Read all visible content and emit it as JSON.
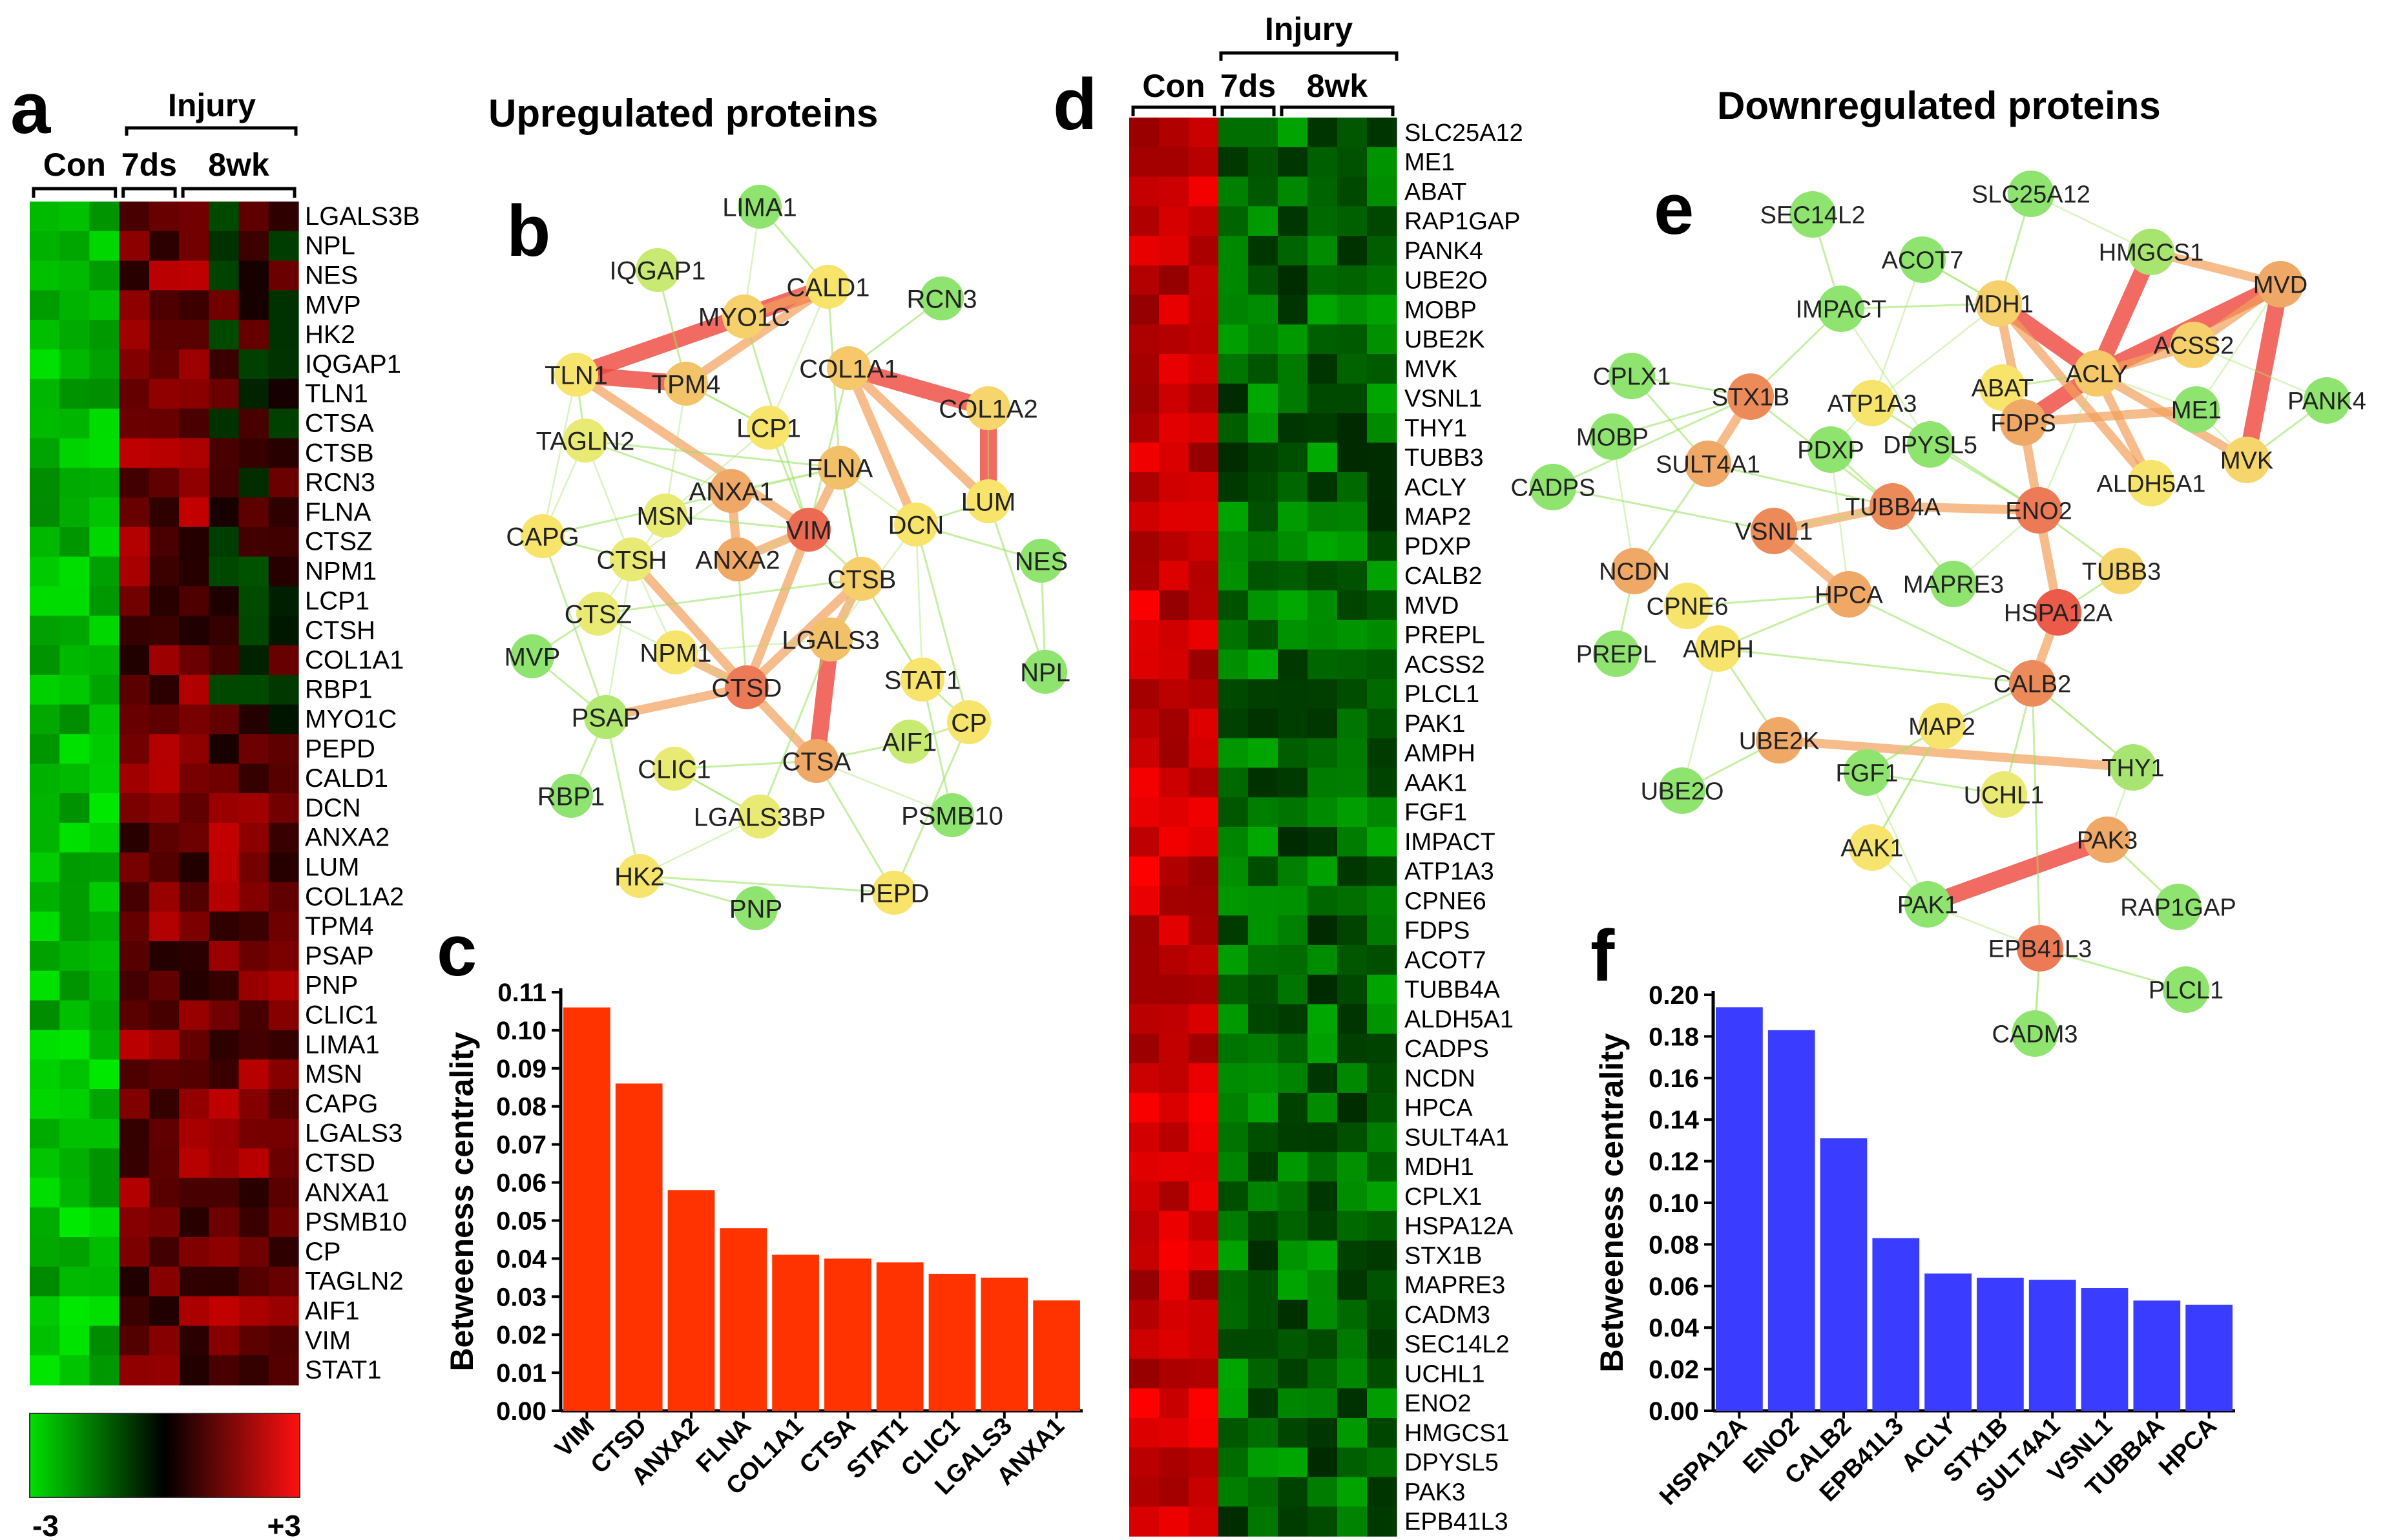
{
  "panels": {
    "a": {
      "letter": "a",
      "injury_label": "Injury",
      "groups": [
        "Con",
        "7ds",
        "8wk"
      ],
      "genes": [
        "LGALS3B",
        "NPL",
        "NES",
        "MVP",
        "HK2",
        "IQGAP1",
        "TLN1",
        "CTSA",
        "CTSB",
        "RCN3",
        "FLNA",
        "CTSZ",
        "NPM1",
        "LCP1",
        "CTSH",
        "COL1A1",
        "RBP1",
        "MYO1C",
        "PEPD",
        "CALD1",
        "DCN",
        "ANXA2",
        "LUM",
        "COL1A2",
        "TPM4",
        "PSAP",
        "PNP",
        "CLIC1",
        "LIMA1",
        "MSN",
        "CAPG",
        "LGALS3",
        "CTSD",
        "ANXA1",
        "PSMB10",
        "CP",
        "TAGLN2",
        "AIF1",
        "VIM",
        "STAT1"
      ],
      "legend": {
        "min_label": "-3",
        "max_label": "+3"
      }
    },
    "b": {
      "letter": "b",
      "title": "Upregulated proteins",
      "nodes": [
        {
          "label": "LIMA1",
          "color": "#8fe36f"
        },
        {
          "label": "IQGAP1",
          "color": "#c8ea72"
        },
        {
          "label": "CALD1",
          "color": "#f8e46a"
        },
        {
          "label": "RCN3",
          "color": "#8fe36f"
        },
        {
          "label": "MYO1C",
          "color": "#f6d06a"
        },
        {
          "label": "TLN1",
          "color": "#f6e46c"
        },
        {
          "label": "TPM4",
          "color": "#f3c36a"
        },
        {
          "label": "COL1A1",
          "color": "#f6c86a"
        },
        {
          "label": "COL1A2",
          "color": "#f6d66c"
        },
        {
          "label": "TAGLN2",
          "color": "#e8ea74"
        },
        {
          "label": "LCP1",
          "color": "#f8e46a"
        },
        {
          "label": "FLNA",
          "color": "#f3c06a"
        },
        {
          "label": "LUM",
          "color": "#f8e46a"
        },
        {
          "label": "ANXA1",
          "color": "#f0a866"
        },
        {
          "label": "MSN",
          "color": "#e8ea74"
        },
        {
          "label": "CAPG",
          "color": "#f8e46a"
        },
        {
          "label": "VIM",
          "color": "#ec6a52"
        },
        {
          "label": "DCN",
          "color": "#f8e46a"
        },
        {
          "label": "NES",
          "color": "#8fe36f"
        },
        {
          "label": "CTSH",
          "color": "#e8ea74"
        },
        {
          "label": "ANXA2",
          "color": "#f0a866"
        },
        {
          "label": "CTSB",
          "color": "#f6cf6a"
        },
        {
          "label": "CTSZ",
          "color": "#e8ea74"
        },
        {
          "label": "LGALS3",
          "color": "#f3c06a"
        },
        {
          "label": "MVP",
          "color": "#8fe36f"
        },
        {
          "label": "NPM1",
          "color": "#f6e46c"
        },
        {
          "label": "CTSD",
          "color": "#ec7a56"
        },
        {
          "label": "STAT1",
          "color": "#f8e46a"
        },
        {
          "label": "NPL",
          "color": "#8fe36f"
        },
        {
          "label": "PSAP",
          "color": "#b0e872"
        },
        {
          "label": "CP",
          "color": "#f6e46c"
        },
        {
          "label": "AIF1",
          "color": "#c8ea72"
        },
        {
          "label": "CTSA",
          "color": "#f0a866"
        },
        {
          "label": "CLIC1",
          "color": "#e8ea74"
        },
        {
          "label": "RBP1",
          "color": "#8fe36f"
        },
        {
          "label": "LGALS3BP",
          "color": "#e8ea74"
        },
        {
          "label": "PSMB10",
          "color": "#8fe36f"
        },
        {
          "label": "HK2",
          "color": "#f6e46c"
        },
        {
          "label": "PNP",
          "color": "#8fe36f"
        },
        {
          "label": "PEPD",
          "color": "#f8e46a"
        }
      ]
    },
    "c": {
      "letter": "c"
    },
    "d": {
      "letter": "d",
      "injury_label": "Injury",
      "groups": [
        "Con",
        "7ds",
        "8wk"
      ],
      "genes": [
        "SLC25A12",
        "ME1",
        "ABAT",
        "RAP1GAP",
        "PANK4",
        "UBE2O",
        "MOBP",
        "UBE2K",
        "MVK",
        "VSNL1",
        "THY1",
        "TUBB3",
        "ACLY",
        "MAP2",
        "PDXP",
        "CALB2",
        "MVD",
        "PREPL",
        "ACSS2",
        "PLCL1",
        "PAK1",
        "AMPH",
        "AAK1",
        "FGF1",
        "IMPACT",
        "ATP1A3",
        "CPNE6",
        "FDPS",
        "ACOT7",
        "TUBB4A",
        "ALDH5A1",
        "CADPS",
        "NCDN",
        "HPCA",
        "SULT4A1",
        "MDH1",
        "CPLX1",
        "HSPA12A",
        "STX1B",
        "MAPRE3",
        "CADM3",
        "SEC14L2",
        "UCHL1",
        "ENO2",
        "HMGCS1",
        "DPYSL5",
        "PAK3",
        "EPB41L3"
      ]
    },
    "e": {
      "letter": "e",
      "title": "Downregulated proteins",
      "nodes": [
        {
          "label": "SEC14L2",
          "color": "#8fe36f"
        },
        {
          "label": "SLC25A12",
          "color": "#8fe36f"
        },
        {
          "label": "ACOT7",
          "color": "#8fe36f"
        },
        {
          "label": "HMGCS1",
          "color": "#a8e570"
        },
        {
          "label": "MVD",
          "color": "#f0a866"
        },
        {
          "label": "IMPACT",
          "color": "#8fe36f"
        },
        {
          "label": "MDH1",
          "color": "#f6d06a"
        },
        {
          "label": "ACSS2",
          "color": "#f6d06a"
        },
        {
          "label": "CPLX1",
          "color": "#8fe36f"
        },
        {
          "label": "STX1B",
          "color": "#ec8a5a"
        },
        {
          "label": "ATP1A3",
          "color": "#f6e46c"
        },
        {
          "label": "ABAT",
          "color": "#f8e46a"
        },
        {
          "label": "ACLY",
          "color": "#f6c86a"
        },
        {
          "label": "PANK4",
          "color": "#8fe36f"
        },
        {
          "label": "MOBP",
          "color": "#8fe36f"
        },
        {
          "label": "FDPS",
          "color": "#f0a866"
        },
        {
          "label": "ME1",
          "color": "#8fe36f"
        },
        {
          "label": "SULT4A1",
          "color": "#f0a866"
        },
        {
          "label": "PDXP",
          "color": "#8fe36f"
        },
        {
          "label": "DPYSL5",
          "color": "#8fe36f"
        },
        {
          "label": "MVK",
          "color": "#f6d66c"
        },
        {
          "label": "CADPS",
          "color": "#8fe36f"
        },
        {
          "label": "ALDH5A1",
          "color": "#f6e46c"
        },
        {
          "label": "TUBB4A",
          "color": "#ec8a5a"
        },
        {
          "label": "ENO2",
          "color": "#ec7a56"
        },
        {
          "label": "VSNL1",
          "color": "#ec8a5a"
        },
        {
          "label": "NCDN",
          "color": "#f0a866"
        },
        {
          "label": "TUBB3",
          "color": "#f6d66c"
        },
        {
          "label": "MAPRE3",
          "color": "#8fe36f"
        },
        {
          "label": "CPNE6",
          "color": "#f6e46c"
        },
        {
          "label": "HPCA",
          "color": "#f0a866"
        },
        {
          "label": "HSPA12A",
          "color": "#ec5a4a"
        },
        {
          "label": "PREPL",
          "color": "#8fe36f"
        },
        {
          "label": "AMPH",
          "color": "#f6e46c"
        },
        {
          "label": "CALB2",
          "color": "#ec8a5a"
        },
        {
          "label": "MAP2",
          "color": "#f6e46c"
        },
        {
          "label": "UBE2K",
          "color": "#f0a866"
        },
        {
          "label": "FGF1",
          "color": "#8fe36f"
        },
        {
          "label": "THY1",
          "color": "#a8e570"
        },
        {
          "label": "UBE2O",
          "color": "#8fe36f"
        },
        {
          "label": "UCHL1",
          "color": "#e8ea74"
        },
        {
          "label": "AAK1",
          "color": "#f6e46c"
        },
        {
          "label": "PAK3",
          "color": "#f0a866"
        },
        {
          "label": "PAK1",
          "color": "#8fe36f"
        },
        {
          "label": "RAP1GAP",
          "color": "#8fe36f"
        },
        {
          "label": "EPB41L3",
          "color": "#ec7a56"
        },
        {
          "label": "PLCL1",
          "color": "#8fe36f"
        },
        {
          "label": "CADM3",
          "color": "#8fe36f"
        }
      ]
    },
    "f": {
      "letter": "f"
    }
  },
  "chart_data": [
    {
      "type": "bar",
      "panel": "c",
      "categories": [
        "VIM",
        "CTSD",
        "ANXA2",
        "FLNA",
        "COL1A1",
        "CTSA",
        "STAT1",
        "CLIC1",
        "LGALS3",
        "ANXA1"
      ],
      "values": [
        0.106,
        0.086,
        0.058,
        0.048,
        0.041,
        0.04,
        0.039,
        0.036,
        0.035,
        0.029
      ],
      "ylabel": "Betweeness centrality",
      "ylim": [
        0,
        0.11
      ],
      "yticks": [
        "0.00",
        "0.01",
        "0.02",
        "0.03",
        "0.04",
        "0.05",
        "0.06",
        "0.07",
        "0.08",
        "0.09",
        "0.10",
        "0.11"
      ],
      "color": "#ff3300"
    },
    {
      "type": "bar",
      "panel": "f",
      "categories": [
        "HSPA12A",
        "ENO2",
        "CALB2",
        "EPB41L3",
        "ACLY",
        "STX1B",
        "SULT4A1",
        "VSNL1",
        "TUBB4A",
        "HPCA"
      ],
      "values": [
        0.194,
        0.183,
        0.131,
        0.083,
        0.066,
        0.064,
        0.063,
        0.059,
        0.053,
        0.051
      ],
      "ylabel": "Betweeness centrality",
      "ylim": [
        0,
        0.2
      ],
      "yticks": [
        "0.00",
        "0.02",
        "0.04",
        "0.06",
        "0.08",
        "0.10",
        "0.12",
        "0.14",
        "0.16",
        "0.18",
        "0.20"
      ],
      "color": "#3a3cff"
    }
  ]
}
